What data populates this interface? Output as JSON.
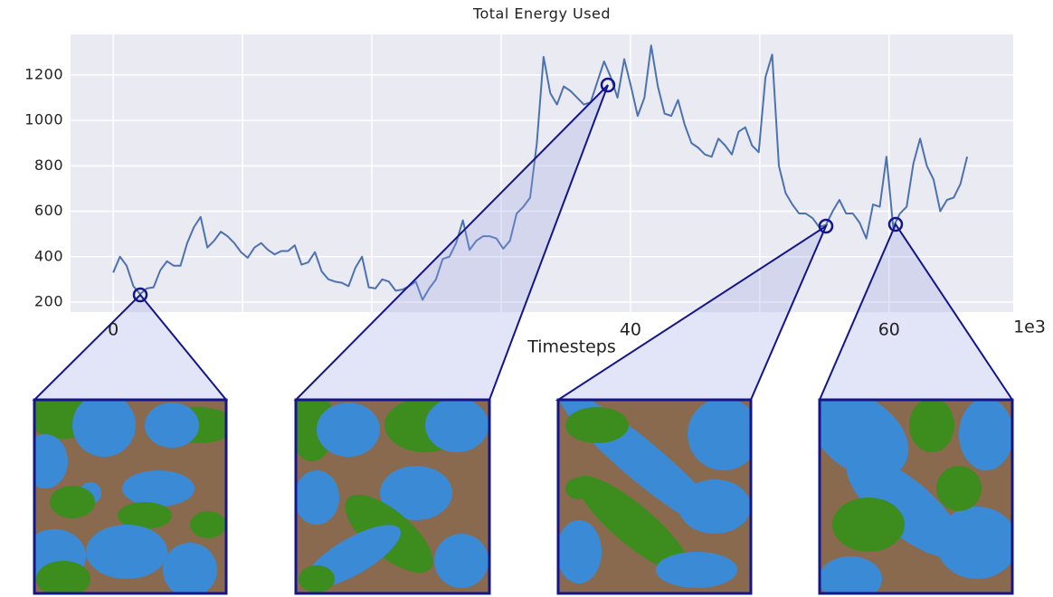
{
  "chart_data": {
    "type": "line",
    "title": "Total Energy Used",
    "x_label": "Timesteps",
    "x_offset_label": "1e3",
    "x": [
      0,
      0.52,
      1.04,
      1.56,
      2.08,
      2.6,
      3.12,
      3.64,
      4.16,
      4.68,
      5.2,
      5.72,
      6.24,
      6.76,
      7.28,
      7.8,
      8.32,
      8.84,
      9.36,
      9.88,
      10.4,
      10.92,
      11.44,
      11.96,
      12.48,
      13,
      13.52,
      14.04,
      14.56,
      15.08,
      15.6,
      16.12,
      16.64,
      17.16,
      17.68,
      18.2,
      18.72,
      19.24,
      19.76,
      20.28,
      20.8,
      21.32,
      21.84,
      22.36,
      22.88,
      23.4,
      23.92,
      24.44,
      24.96,
      25.48,
      26,
      26.52,
      27.04,
      27.56,
      28.08,
      28.6,
      29.12,
      29.64,
      30.16,
      30.68,
      31.2,
      31.72,
      32.24,
      32.76,
      33.28,
      33.8,
      34.32,
      34.84,
      35.36,
      35.88,
      36.4,
      36.92,
      37.44,
      37.96,
      38.48,
      39,
      39.52,
      40.04,
      40.56,
      41.08,
      41.6,
      42.12,
      42.64,
      43.16,
      43.68,
      44.2,
      44.72,
      45.24,
      45.76,
      46.28,
      46.8,
      47.32,
      47.84,
      48.36,
      48.88,
      49.4,
      49.92,
      50.44,
      50.96,
      51.48,
      52,
      52.52,
      53.04,
      53.56,
      54.08,
      54.6,
      55.12,
      55.64,
      56.16,
      56.68,
      57.2,
      57.72,
      58.24,
      58.76,
      59.28,
      59.8,
      60.32,
      60.84,
      61.36,
      61.88,
      62.4,
      62.92,
      63.44,
      63.96,
      64.48,
      65,
      65.52,
      66.04
    ],
    "series": [
      {
        "color": "#4c72b0",
        "values": [
          330,
          400,
          360,
          270,
          235,
          260,
          265,
          340,
          380,
          360,
          360,
          460,
          530,
          575,
          440,
          470,
          510,
          490,
          460,
          420,
          395,
          440,
          460,
          430,
          410,
          425,
          425,
          450,
          365,
          375,
          420,
          335,
          300,
          290,
          285,
          270,
          350,
          400,
          265,
          260,
          300,
          290,
          250,
          255,
          270,
          290,
          210,
          260,
          300,
          390,
          400,
          460,
          560,
          430,
          470,
          490,
          490,
          480,
          435,
          470,
          590,
          620,
          660,
          900,
          1280,
          1120,
          1070,
          1150,
          1130,
          1100,
          1070,
          1080,
          1170,
          1260,
          1190,
          1100,
          1270,
          1150,
          1020,
          1100,
          1330,
          1150,
          1030,
          1020,
          1090,
          980,
          900,
          880,
          850,
          840,
          920,
          890,
          850,
          950,
          970,
          890,
          860,
          1190,
          1290,
          800,
          680,
          630,
          590,
          590,
          570,
          530,
          540,
          600,
          650,
          590,
          590,
          550,
          480,
          630,
          620,
          840,
          530,
          590,
          620,
          810,
          920,
          800,
          740,
          600,
          650,
          660,
          720,
          840
        ]
      }
    ],
    "xlim": [
      -3.3,
      69.6
    ],
    "xticks": [
      0,
      40,
      60
    ],
    "xgrid": [
      0,
      10,
      20,
      30,
      40,
      50,
      60,
      70
    ],
    "ylim": [
      156,
      1379
    ],
    "yticks": [
      200,
      400,
      600,
      800,
      1000,
      1200
    ],
    "grid": true
  }
}
